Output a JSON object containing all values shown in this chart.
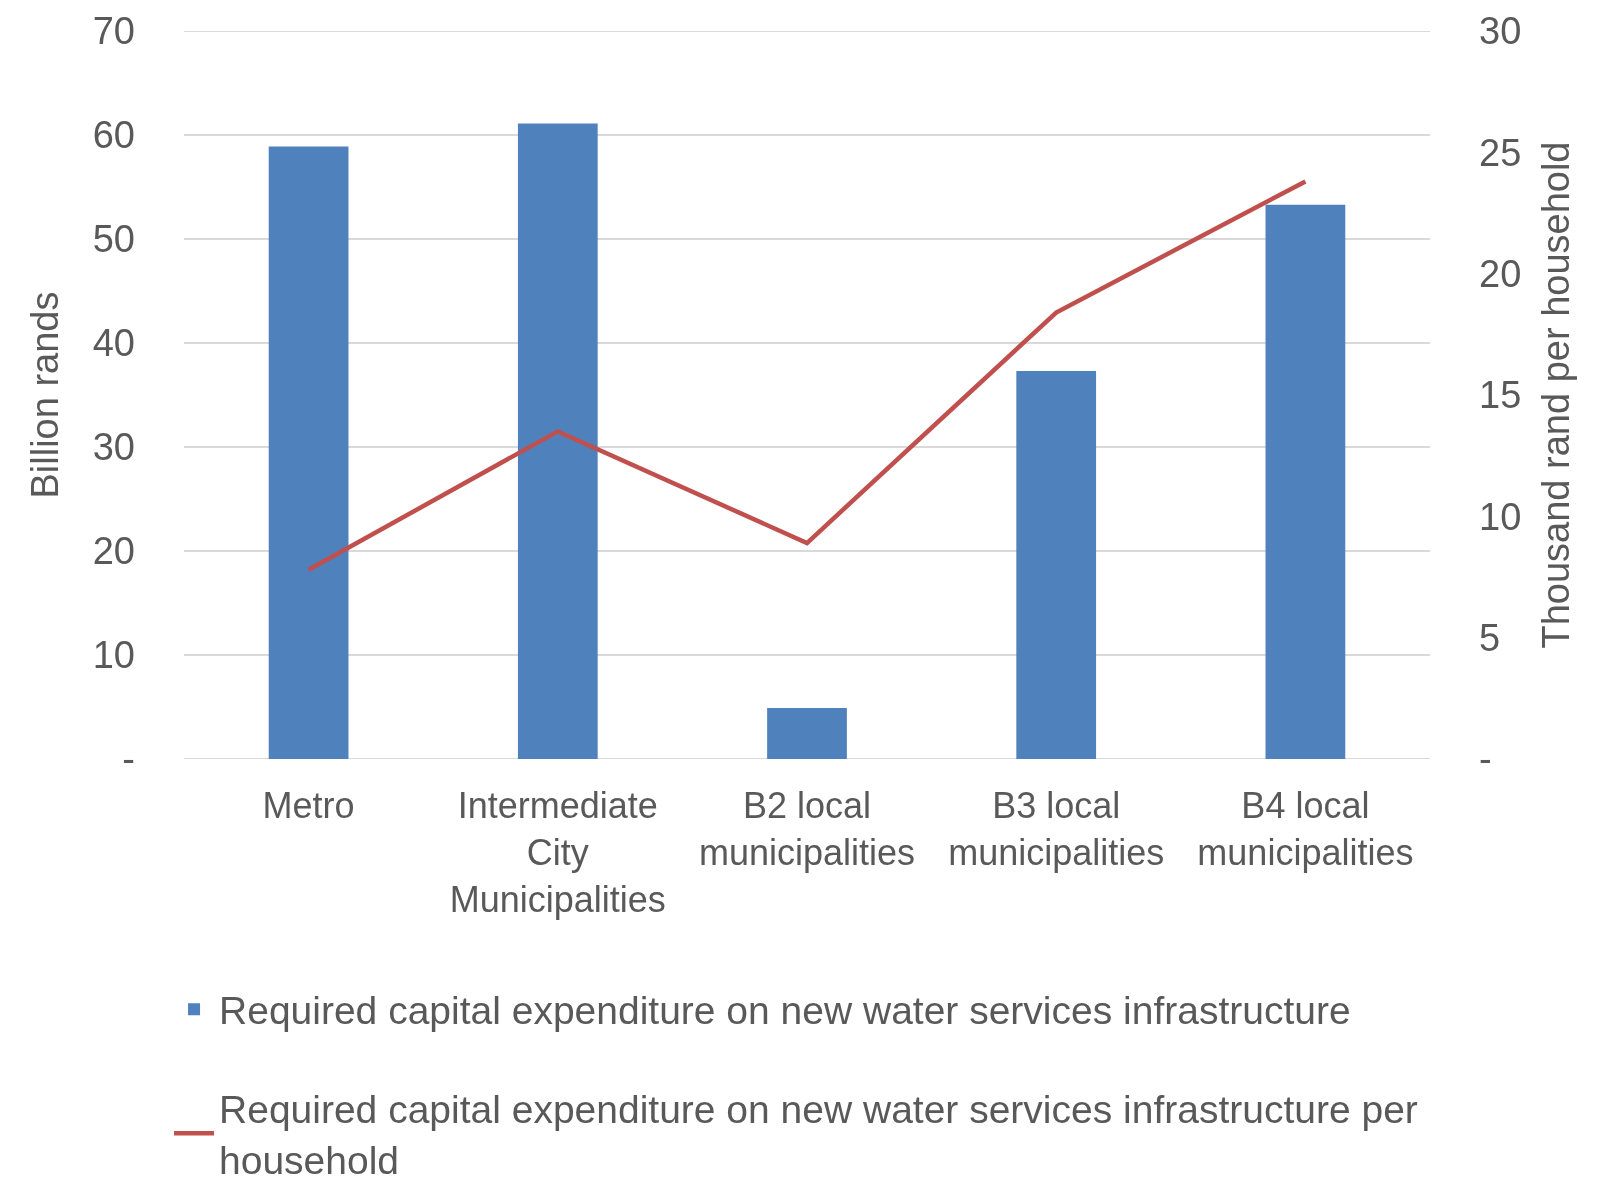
{
  "chart_data": {
    "type": "bar",
    "categories": [
      "Metro",
      "Intermediate City Municipalities",
      "B2 local municipalities",
      "B3 local municipalities",
      "B4 local municipalities"
    ],
    "series": [
      {
        "name": "Required capital expenditure on new water services infrastructure",
        "color": "#4f81bd",
        "values": [
          58.9,
          61.1,
          4.9,
          37.3,
          53.3
        ]
      },
      {
        "name": "Required capital expenditure on new water services infrastructure per household",
        "type": "line",
        "axis": "y2",
        "color": "#c0504d",
        "values": [
          7.8,
          13.5,
          8.9,
          18.4,
          23.8
        ]
      }
    ],
    "ylabel": "Billion rands",
    "y2label": "Thousand rand per household",
    "ylim": [
      0,
      70
    ],
    "yticks": [
      {
        "value": 0,
        "label": "-"
      },
      10,
      20,
      30,
      40,
      50,
      60,
      70
    ],
    "y2lim": [
      0,
      30
    ],
    "y2ticks": [
      {
        "value": 0,
        "label": "-"
      },
      5,
      10,
      15,
      20,
      25,
      30
    ],
    "grid": "y",
    "legend": "bottom"
  }
}
